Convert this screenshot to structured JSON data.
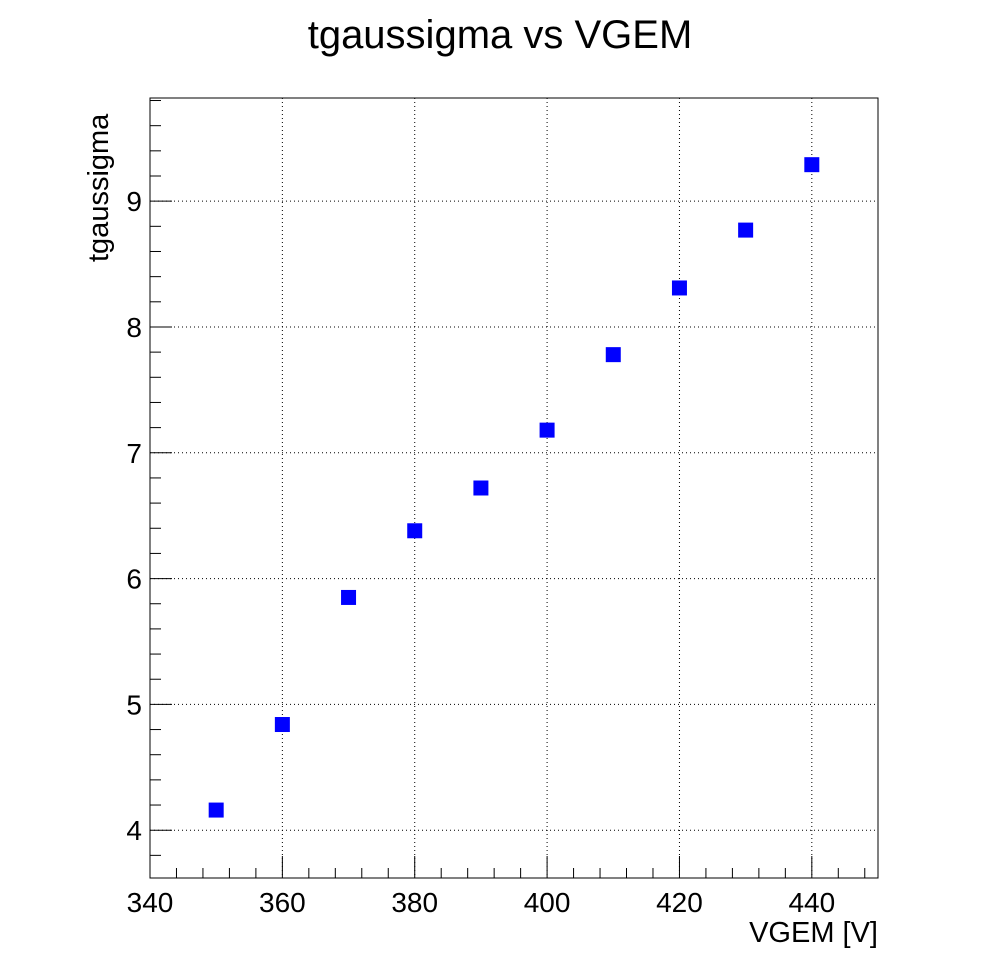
{
  "chart_data": {
    "type": "scatter",
    "title": "tgaussigma vs VGEM",
    "xlabel": "VGEM [V]",
    "ylabel": "tgaussigma",
    "xlim": [
      340,
      450
    ],
    "ylim": [
      3.62,
      9.82
    ],
    "x_ticks": [
      340,
      360,
      380,
      400,
      420,
      440
    ],
    "y_ticks": [
      4,
      5,
      6,
      7,
      8,
      9
    ],
    "grid": true,
    "marker": "square",
    "series": [
      {
        "color": "#0000ff",
        "points": [
          {
            "x": 350,
            "y": 4.16
          },
          {
            "x": 360,
            "y": 4.84
          },
          {
            "x": 370,
            "y": 5.85
          },
          {
            "x": 380,
            "y": 6.38
          },
          {
            "x": 390,
            "y": 6.72
          },
          {
            "x": 400,
            "y": 7.18
          },
          {
            "x": 410,
            "y": 7.78
          },
          {
            "x": 420,
            "y": 8.31
          },
          {
            "x": 430,
            "y": 8.77
          },
          {
            "x": 440,
            "y": 9.29
          }
        ]
      }
    ]
  }
}
